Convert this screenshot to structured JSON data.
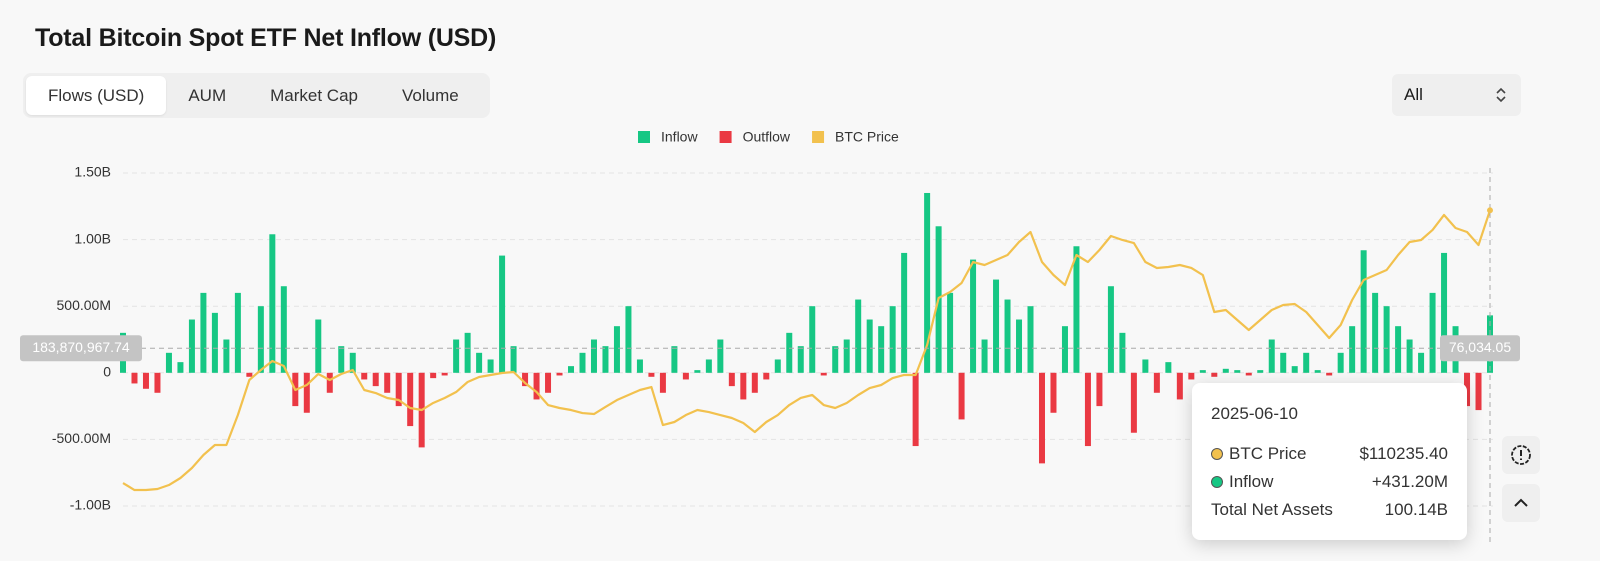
{
  "title": "Total Bitcoin Spot ETF Net Inflow (USD)",
  "controls": {
    "tabs": [
      "Flows (USD)",
      "AUM",
      "Market Cap",
      "Volume"
    ],
    "range_select": "All"
  },
  "chart_data": {
    "type": "bar",
    "categories": [
      null,
      null,
      null,
      null,
      null,
      null,
      null,
      null,
      null,
      null,
      null,
      null,
      null,
      null,
      null,
      null,
      null,
      null,
      null,
      null,
      null,
      null,
      null,
      null,
      null,
      null,
      null,
      null,
      null,
      null,
      null,
      null,
      null,
      null,
      null,
      null,
      null,
      null,
      null,
      null,
      null,
      null,
      null,
      null,
      null,
      null,
      null,
      null,
      null,
      null,
      null,
      null,
      null,
      null,
      null,
      null,
      null,
      null,
      null,
      null,
      null,
      null,
      null,
      null,
      null,
      null,
      null,
      null,
      null,
      null,
      null,
      null,
      null,
      null,
      null,
      null,
      null,
      null,
      null,
      null,
      null,
      null,
      null,
      null,
      null,
      null,
      null,
      null,
      null,
      null,
      null,
      null,
      null,
      null,
      null,
      null,
      null,
      null,
      null,
      null,
      null,
      null,
      null,
      null,
      null,
      null,
      null,
      null,
      null,
      null,
      null,
      null,
      null,
      null,
      null,
      null,
      null,
      null,
      null,
      "2025-06-10"
    ],
    "series": [
      {
        "name": "Inflow",
        "color": "#16c784",
        "values": [
          300000000.0,
          null,
          null,
          null,
          150000000.0,
          80000000.0,
          400000000.0,
          600000000.0,
          450000000.0,
          250000000.0,
          600000000.0,
          null,
          500000000.0,
          1040000000.0,
          650000000.0,
          null,
          null,
          400000000.0,
          null,
          200000000.0,
          150000000.0,
          null,
          null,
          null,
          null,
          null,
          null,
          null,
          null,
          250000000.0,
          300000000.0,
          150000000.0,
          100000000.0,
          880000000.0,
          200000000.0,
          null,
          null,
          null,
          null,
          50000000.0,
          150000000.0,
          250000000.0,
          200000000.0,
          350000000.0,
          500000000.0,
          100000000.0,
          null,
          null,
          200000000.0,
          null,
          20000000.0,
          100000000.0,
          250000000.0,
          null,
          null,
          null,
          null,
          100000000.0,
          300000000.0,
          200000000.0,
          500000000.0,
          null,
          200000000.0,
          250000000.0,
          550000000.0,
          400000000.0,
          350000000.0,
          500000000.0,
          900000000.0,
          null,
          1350000000.0,
          1100000000.0,
          600000000.0,
          null,
          850000000.0,
          250000000.0,
          700000000.0,
          550000000.0,
          400000000.0,
          500000000.0,
          null,
          null,
          350000000.0,
          950000000.0,
          null,
          null,
          650000000.0,
          300000000.0,
          null,
          100000000.0,
          null,
          80000000.0,
          null,
          null,
          20000000.0,
          null,
          30000000.0,
          20000000.0,
          null,
          20000000.0,
          250000000.0,
          150000000.0,
          50000000.0,
          150000000.0,
          20000000.0,
          null,
          150000000.0,
          350000000.0,
          920000000.0,
          600000000.0,
          500000000.0,
          350000000.0,
          250000000.0,
          150000000.0,
          600000000.0,
          900000000.0,
          350000000.0,
          null,
          null,
          431200000.0
        ]
      },
      {
        "name": "Outflow",
        "color": "#ea3943",
        "values": [
          null,
          -80000000.0,
          -120000000.0,
          -150000000.0,
          null,
          null,
          null,
          null,
          null,
          null,
          null,
          -30000000.0,
          null,
          null,
          null,
          -250000000.0,
          -300000000.0,
          null,
          -150000000.0,
          null,
          null,
          -50000000.0,
          -100000000.0,
          -150000000.0,
          -250000000.0,
          -400000000.0,
          -560000000.0,
          -40000000.0,
          -20000000.0,
          null,
          null,
          null,
          null,
          null,
          null,
          -100000000.0,
          -200000000.0,
          -150000000.0,
          -20000000.0,
          null,
          null,
          null,
          null,
          null,
          null,
          null,
          -30000000.0,
          -150000000.0,
          null,
          -50000000.0,
          null,
          null,
          null,
          -100000000.0,
          -200000000.0,
          -150000000.0,
          -50000000.0,
          null,
          null,
          null,
          null,
          -20000000.0,
          null,
          null,
          null,
          null,
          null,
          null,
          null,
          -550000000.0,
          null,
          null,
          null,
          -350000000.0,
          null,
          null,
          null,
          null,
          null,
          null,
          -680000000.0,
          -300000000.0,
          null,
          null,
          -550000000.0,
          -250000000.0,
          null,
          null,
          -450000000.0,
          null,
          -150000000.0,
          null,
          -200000000.0,
          -50000000.0,
          null,
          -30000000.0,
          null,
          null,
          -20000000.0,
          null,
          null,
          null,
          null,
          null,
          null,
          -20000000.0,
          null,
          null,
          null,
          null,
          null,
          null,
          null,
          null,
          null,
          null,
          null,
          -250000000.0,
          -280000000.0,
          null
        ]
      },
      {
        "name": "BTC Price",
        "color": "#f2c14e",
        "axis": "y2",
        "type": "line",
        "values": [
          42649,
          40914,
          40914,
          41160,
          42150,
          43890,
          46370,
          49590,
          52070,
          52070,
          59500,
          68180,
          70660,
          72890,
          71650,
          65700,
          66940,
          69670,
          68180,
          69670,
          70660,
          65700,
          64950,
          63720,
          63220,
          61240,
          60740,
          62480,
          63720,
          65200,
          67680,
          68920,
          69420,
          69910,
          70160,
          67440,
          65200,
          61980,
          61240,
          60740,
          59990,
          59750,
          61490,
          63220,
          64460,
          65700,
          66440,
          57020,
          57770,
          59500,
          60740,
          60240,
          59500,
          58760,
          57520,
          55290,
          57770,
          59500,
          61980,
          63720,
          64460,
          61980,
          61240,
          62480,
          64460,
          66190,
          66940,
          68670,
          69420,
          69420,
          76850,
          88500,
          89990,
          92220,
          97420,
          96680,
          97920,
          99160,
          102380,
          104860,
          97420,
          94200,
          91720,
          99160,
          97420,
          100400,
          103870,
          102880,
          102130,
          97420,
          95940,
          96180,
          96680,
          95940,
          94200,
          85030,
          85530,
          83050,
          80570,
          83050,
          85530,
          86770,
          87010,
          85030,
          81810,
          78590,
          81810,
          88010,
          92960,
          94200,
          95440,
          99160,
          102380,
          102880,
          105360,
          109080,
          105850,
          104860,
          101640,
          110235.4
        ]
      }
    ],
    "ylim": [
      -1000000000,
      1500000000
    ],
    "yticks": [
      {
        "value": 1500000000,
        "label": "1.50B"
      },
      {
        "value": 1000000000,
        "label": "1.00B"
      },
      {
        "value": 500000000,
        "label": "500.00M"
      },
      0,
      {
        "value": -500000000,
        "label": "-500.00M"
      },
      {
        "value": -1000000000,
        "label": "-1.00B"
      }
    ],
    "y2lim": [
      36950,
      119483
    ],
    "grid": true,
    "legend": "top",
    "crosshair": {
      "y": {
        "value": 183870967.74,
        "label": "183,870,967.74"
      },
      "y2": {
        "value": 76034.05,
        "label": "76,034.05"
      }
    },
    "tooltip": {
      "price_label": "$110235.40",
      "flow_label": "+431.20M",
      "total_net_assets": {
        "name": "Total Net Assets",
        "label": "100.14B"
      }
    }
  }
}
